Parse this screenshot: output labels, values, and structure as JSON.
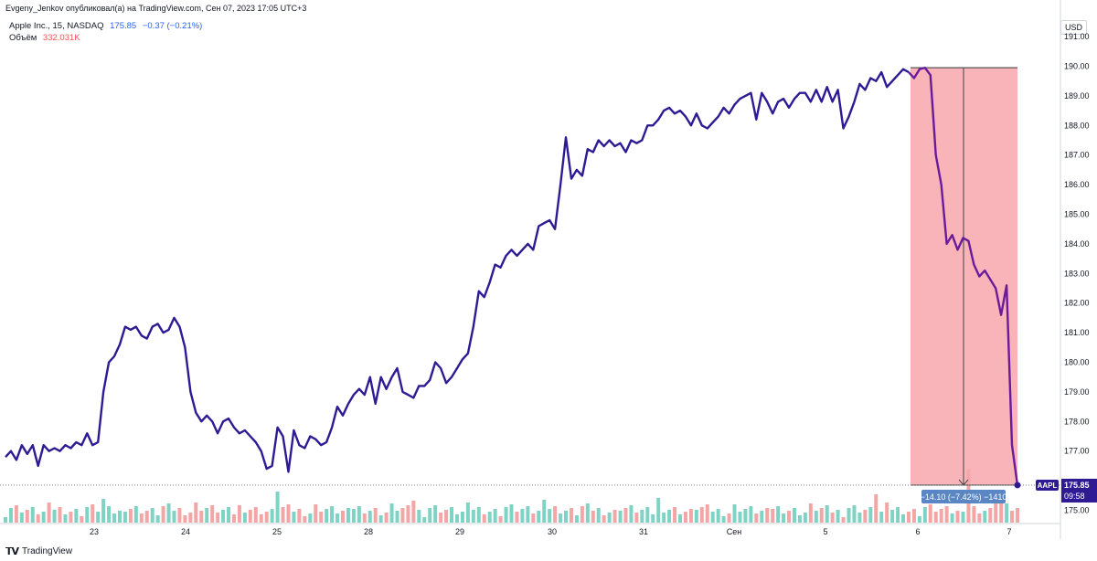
{
  "header": {
    "published_by": "Evgeny_Jenkov опубликовал(а) на TradingView.com, Сен 07, 2023 17:05 UTC+3"
  },
  "legend": {
    "symbol": "Apple Inc., 15, NASDAQ",
    "last": "175.85",
    "change": "−0.37 (−0.21%)",
    "volume_label": "Объём",
    "volume_value": "332.031K"
  },
  "currency": "USD",
  "price_tag": {
    "ticker": "AAPL",
    "price": "175.85",
    "countdown": "09:58"
  },
  "measure": {
    "label": "−14.10 (−7.42%) −1410",
    "from": 189.95,
    "to": 175.85
  },
  "footer": {
    "brand": "TradingView"
  },
  "colors": {
    "line": "#2e1b94",
    "line_in_range": "#6a1b9a",
    "measure_fill": "#f7a7ad",
    "vol_up": "#7fd3c4",
    "vol_down": "#f4a6a6"
  },
  "chart_data": {
    "type": "line",
    "title": "Apple Inc., 15, NASDAQ",
    "xlabel": "",
    "ylabel": "",
    "ylim": [
      174.6,
      197.3
    ],
    "y_ticks": [
      "191.00",
      "190.00",
      "189.00",
      "188.00",
      "187.00",
      "186.00",
      "185.00",
      "184.00",
      "183.00",
      "182.00",
      "181.00",
      "180.00",
      "179.00",
      "178.00",
      "177.00",
      "175.00"
    ],
    "x_ticks": [
      "23",
      "24",
      "25",
      "28",
      "29",
      "30",
      "31",
      "Сен",
      "5",
      "6",
      "7"
    ],
    "grid": false,
    "series": [
      {
        "values": [
          176.8,
          177.0,
          176.7,
          177.2,
          176.9,
          177.2,
          176.5,
          177.2,
          177.0,
          177.1,
          177.0,
          177.2,
          177.1,
          177.3,
          177.2,
          177.6,
          177.2,
          177.3,
          179.0,
          180.0,
          180.2,
          180.6,
          181.2,
          181.1,
          181.2,
          180.9,
          180.8,
          181.2,
          181.3,
          181.0,
          181.1,
          181.5,
          181.2,
          180.5,
          179.0,
          178.3,
          178.0,
          178.2,
          178.0,
          177.6,
          178.0,
          178.1,
          177.8,
          177.6,
          177.7,
          177.5,
          177.3,
          177.0,
          176.4,
          176.5,
          177.8,
          177.5,
          176.3,
          177.7,
          177.2,
          177.1,
          177.5,
          177.4,
          177.2,
          177.3,
          177.8,
          178.5,
          178.2,
          178.6,
          178.9,
          179.1,
          178.9,
          179.5,
          178.6,
          179.5,
          179.1,
          179.5,
          179.8,
          179.0,
          178.9,
          178.8,
          179.2,
          179.2,
          179.4,
          180.0,
          179.8,
          179.3,
          179.5,
          179.8,
          180.1,
          180.3,
          181.2,
          182.4,
          182.2,
          182.7,
          183.3,
          183.2,
          183.6,
          183.8,
          183.6,
          183.8,
          184.0,
          183.8,
          184.6,
          184.7,
          184.8,
          184.5,
          186.0,
          187.6,
          186.2,
          186.5,
          186.3,
          187.2,
          187.1,
          187.5,
          187.3,
          187.5,
          187.3,
          187.4,
          187.1,
          187.5,
          187.4,
          187.5,
          188.0,
          188.0,
          188.2,
          188.5,
          188.6,
          188.4,
          188.5,
          188.3,
          188.0,
          188.4,
          188.0,
          187.9,
          188.1,
          188.3,
          188.6,
          188.4,
          188.7,
          188.9,
          189.0,
          189.1,
          188.2,
          189.1,
          188.8,
          188.4,
          188.8,
          188.9,
          188.6,
          188.9,
          189.1,
          189.1,
          188.8,
          189.2,
          188.8,
          189.3,
          188.8,
          189.2,
          187.9,
          188.3,
          188.8,
          189.4,
          189.2,
          189.6,
          189.5,
          189.8,
          189.3,
          189.5,
          189.7,
          189.9,
          189.8,
          189.6,
          189.9,
          189.95,
          189.7,
          187.0,
          186.0,
          184.0,
          184.3,
          183.8,
          184.2,
          184.1,
          183.3,
          182.9,
          183.1,
          182.8,
          182.5,
          181.6,
          182.6,
          177.2,
          175.85
        ]
      }
    ],
    "volume_series": {
      "name": "Объём",
      "current": "332.031K"
    }
  }
}
